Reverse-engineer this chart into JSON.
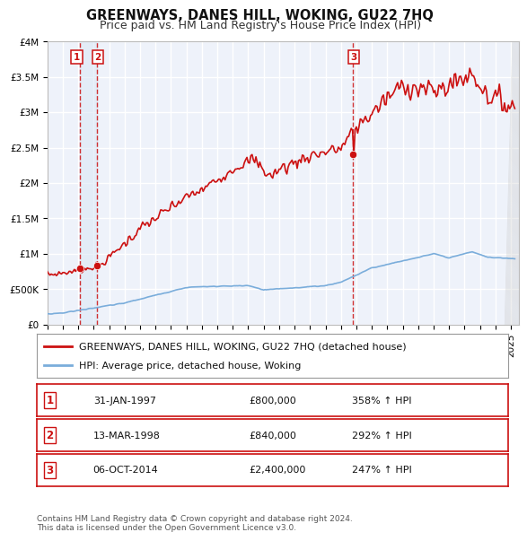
{
  "title": "GREENWAYS, DANES HILL, WOKING, GU22 7HQ",
  "subtitle": "Price paid vs. HM Land Registry's House Price Index (HPI)",
  "ylim": [
    0,
    4000000
  ],
  "xlim_start": 1995.0,
  "xlim_end": 2025.5,
  "yticks": [
    0,
    500000,
    1000000,
    1500000,
    2000000,
    2500000,
    3000000,
    3500000,
    4000000
  ],
  "ytick_labels": [
    "£0",
    "£500K",
    "£1M",
    "£1.5M",
    "£2M",
    "£2.5M",
    "£3M",
    "£3.5M",
    "£4M"
  ],
  "background_color": "#ffffff",
  "plot_bg_color": "#eef2fa",
  "grid_color": "#ffffff",
  "hpi_line_color": "#7aaddb",
  "price_line_color": "#cc1111",
  "sale_dot_color": "#cc1111",
  "vline_color": "#cc1111",
  "shade_color": "#dce8f5",
  "shade_alpha": 0.6,
  "sale_points": [
    {
      "date": 1997.08,
      "price": 800000,
      "label": "1"
    },
    {
      "date": 1998.2,
      "price": 840000,
      "label": "2"
    },
    {
      "date": 2014.76,
      "price": 2400000,
      "label": "3"
    }
  ],
  "vline_dates": [
    1997.08,
    1998.2,
    2014.76
  ],
  "legend_entries": [
    {
      "label": "GREENWAYS, DANES HILL, WOKING, GU22 7HQ (detached house)",
      "color": "#cc1111",
      "lw": 2
    },
    {
      "label": "HPI: Average price, detached house, Woking",
      "color": "#7aaddb",
      "lw": 2
    }
  ],
  "table_rows": [
    {
      "num": "1",
      "date": "31-JAN-1997",
      "price": "£800,000",
      "hpi": "358% ↑ HPI"
    },
    {
      "num": "2",
      "date": "13-MAR-1998",
      "price": "£840,000",
      "hpi": "292% ↑ HPI"
    },
    {
      "num": "3",
      "date": "06-OCT-2014",
      "price": "£2,400,000",
      "hpi": "247% ↑ HPI"
    }
  ],
  "footnote": "Contains HM Land Registry data © Crown copyright and database right 2024.\nThis data is licensed under the Open Government Licence v3.0.",
  "title_fontsize": 10.5,
  "subtitle_fontsize": 9,
  "tick_fontsize": 7.5,
  "legend_fontsize": 8,
  "table_fontsize": 8,
  "footnote_fontsize": 6.5
}
